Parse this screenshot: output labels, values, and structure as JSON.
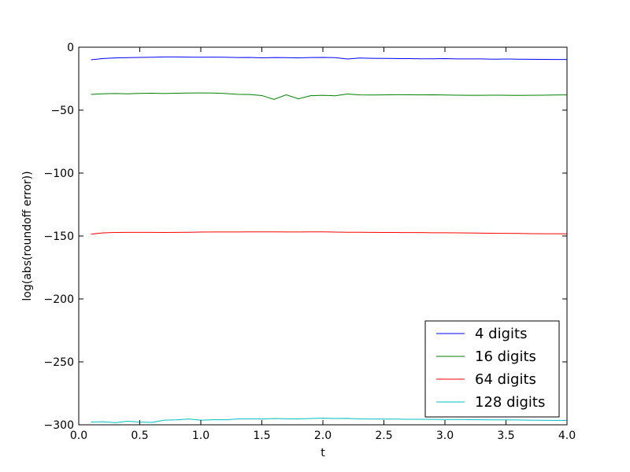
{
  "chart_data": {
    "type": "line",
    "title": "",
    "xlabel": "t",
    "ylabel": "log(abs(roundoff error))",
    "xlim": [
      0.0,
      4.0
    ],
    "ylim": [
      -300,
      0
    ],
    "xticks": [
      "0.0",
      "0.5",
      "1.0",
      "1.5",
      "2.0",
      "2.5",
      "3.0",
      "3.5",
      "4.0"
    ],
    "yticks": [
      "0",
      "−50",
      "−100",
      "−150",
      "−200",
      "−250",
      "−300"
    ],
    "grid": false,
    "legend": "bottom-right",
    "series": [
      {
        "name": "4 digits",
        "color": "#0000ff",
        "x": [
          0.1,
          0.2,
          0.3,
          0.4,
          0.5,
          0.6,
          0.7,
          0.8,
          0.9,
          1.0,
          1.1,
          1.2,
          1.3,
          1.4,
          1.5,
          1.6,
          1.7,
          1.8,
          1.9,
          2.0,
          2.1,
          2.2,
          2.3,
          2.4,
          2.5,
          2.6,
          2.7,
          2.8,
          2.9,
          3.0,
          3.1,
          3.2,
          3.3,
          3.4,
          3.5,
          3.6,
          3.7,
          3.8,
          3.9,
          4.0
        ],
        "y": [
          -10,
          -9,
          -8.5,
          -8.3,
          -8.1,
          -8,
          -7.7,
          -7.7,
          -7.9,
          -8,
          -7.9,
          -8,
          -8.2,
          -8.1,
          -8.4,
          -8.2,
          -8.3,
          -8.5,
          -8.2,
          -8.1,
          -8.3,
          -9.4,
          -8.6,
          -8.8,
          -8.9,
          -9,
          -9.1,
          -9.2,
          -9.2,
          -9.1,
          -9.3,
          -9.3,
          -9.3,
          -9.5,
          -9.4,
          -9.5,
          -9.6,
          -9.7,
          -9.8,
          -9.8
        ]
      },
      {
        "name": "16 digits",
        "color": "#008000",
        "x": [
          0.1,
          0.2,
          0.3,
          0.4,
          0.5,
          0.6,
          0.7,
          0.8,
          0.9,
          1.0,
          1.1,
          1.2,
          1.3,
          1.4,
          1.5,
          1.6,
          1.7,
          1.8,
          1.9,
          2.0,
          2.1,
          2.2,
          2.3,
          2.4,
          2.5,
          2.6,
          2.7,
          2.8,
          2.9,
          3.0,
          3.1,
          3.2,
          3.3,
          3.4,
          3.5,
          3.6,
          3.7,
          3.8,
          3.9,
          4.0
        ],
        "y": [
          -37.5,
          -37,
          -36.8,
          -37,
          -36.7,
          -36.6,
          -36.8,
          -36.6,
          -36.4,
          -36.3,
          -36.4,
          -36.8,
          -37.4,
          -37.6,
          -38.4,
          -41.5,
          -37.8,
          -41,
          -38.5,
          -38.2,
          -38.6,
          -37.2,
          -37.9,
          -38,
          -37.9,
          -37.7,
          -37.8,
          -37.9,
          -37.8,
          -38,
          -38.1,
          -38.2,
          -38.2,
          -38.1,
          -38.2,
          -38.3,
          -38.2,
          -38.1,
          -38,
          -37.9
        ]
      },
      {
        "name": "64 digits",
        "color": "#ff0000",
        "x": [
          0.1,
          0.2,
          0.3,
          0.4,
          0.5,
          0.6,
          0.7,
          0.8,
          0.9,
          1.0,
          1.1,
          1.2,
          1.3,
          1.4,
          1.5,
          1.6,
          1.7,
          1.8,
          1.9,
          2.0,
          2.1,
          2.2,
          2.3,
          2.4,
          2.5,
          2.6,
          2.7,
          2.8,
          2.9,
          3.0,
          3.1,
          3.2,
          3.3,
          3.4,
          3.5,
          3.6,
          3.7,
          3.8,
          3.9,
          4.0
        ],
        "y": [
          -148.5,
          -147.5,
          -147.2,
          -147.1,
          -147.1,
          -147.1,
          -147.2,
          -147.1,
          -147,
          -146.9,
          -146.8,
          -146.8,
          -146.8,
          -146.7,
          -146.7,
          -146.7,
          -146.8,
          -146.8,
          -146.7,
          -146.7,
          -146.9,
          -147,
          -147,
          -147.1,
          -147.2,
          -147.2,
          -147.3,
          -147.3,
          -147.4,
          -147.4,
          -147.5,
          -147.6,
          -147.7,
          -147.8,
          -147.9,
          -148,
          -148.1,
          -148.2,
          -148.2,
          -148.3
        ]
      },
      {
        "name": "128 digits",
        "color": "#00bfbf",
        "x": [
          0.1,
          0.2,
          0.3,
          0.4,
          0.5,
          0.6,
          0.7,
          0.8,
          0.9,
          1.0,
          1.1,
          1.2,
          1.3,
          1.4,
          1.5,
          1.6,
          1.7,
          1.8,
          1.9,
          2.0,
          2.1,
          2.2,
          2.3,
          2.4,
          2.5,
          2.6,
          2.7,
          2.8,
          2.9,
          3.0,
          3.1,
          3.2,
          3.3,
          3.4,
          3.5,
          3.6,
          3.7,
          3.8,
          3.9,
          4.0
        ],
        "y": [
          -297.8,
          -297.6,
          -298.3,
          -297.2,
          -297.8,
          -298.1,
          -296.3,
          -296.1,
          -295.4,
          -296.3,
          -296,
          -296,
          -295.4,
          -295.3,
          -295.4,
          -295,
          -295.2,
          -295.3,
          -295,
          -294.8,
          -295,
          -294.9,
          -295.3,
          -295.4,
          -295.5,
          -295.5,
          -295.6,
          -295.6,
          -295.7,
          -295.8,
          -295.8,
          -295.9,
          -296,
          -296.1,
          -296.1,
          -296.2,
          -296.3,
          -296.4,
          -296.5,
          -296.5
        ]
      }
    ]
  }
}
